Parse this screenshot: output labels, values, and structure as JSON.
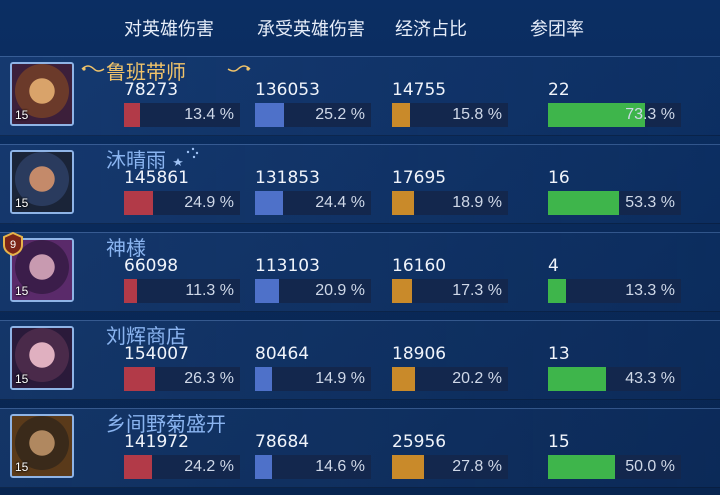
{
  "headers": {
    "damage_dealt": "对英雄伤害",
    "damage_taken": "承受英雄伤害",
    "economy_share": "经济占比",
    "participation": "参团率"
  },
  "colors": {
    "damage_dealt_bar": "#b23a48",
    "damage_taken_bar": "#4e71c9",
    "economy_bar": "#c98a2a",
    "participation_bar": "#3eb54b",
    "highlight_name": "#f0c36a",
    "player_name": "#8ab4f0"
  },
  "rank_badge": "9",
  "players": [
    {
      "name": "鲁班带师",
      "level": "15",
      "highlight": true,
      "damage_dealt": "78273",
      "damage_dealt_pct": "13.4 %",
      "damage_dealt_ratio": 0.134,
      "damage_taken": "136053",
      "damage_taken_pct": "25.2 %",
      "damage_taken_ratio": 0.252,
      "economy": "14755",
      "economy_pct": "15.8 %",
      "economy_ratio": 0.158,
      "participation": "22",
      "participation_pct": "73.3 %",
      "participation_ratio": 0.733
    },
    {
      "name": "沐晴雨",
      "level": "15",
      "highlight": false,
      "damage_dealt": "145861",
      "damage_dealt_pct": "24.9 %",
      "damage_dealt_ratio": 0.249,
      "damage_taken": "131853",
      "damage_taken_pct": "24.4 %",
      "damage_taken_ratio": 0.244,
      "economy": "17695",
      "economy_pct": "18.9 %",
      "economy_ratio": 0.189,
      "participation": "16",
      "participation_pct": "53.3 %",
      "participation_ratio": 0.533
    },
    {
      "name": "神様",
      "level": "15",
      "highlight": false,
      "damage_dealt": "66098",
      "damage_dealt_pct": "11.3 %",
      "damage_dealt_ratio": 0.113,
      "damage_taken": "113103",
      "damage_taken_pct": "20.9 %",
      "damage_taken_ratio": 0.209,
      "economy": "16160",
      "economy_pct": "17.3 %",
      "economy_ratio": 0.173,
      "participation": "4",
      "participation_pct": "13.3 %",
      "participation_ratio": 0.133
    },
    {
      "name": "刘辉商店",
      "level": "15",
      "highlight": false,
      "damage_dealt": "154007",
      "damage_dealt_pct": "26.3 %",
      "damage_dealt_ratio": 0.263,
      "damage_taken": "80464",
      "damage_taken_pct": "14.9 %",
      "damage_taken_ratio": 0.149,
      "economy": "18906",
      "economy_pct": "20.2 %",
      "economy_ratio": 0.202,
      "participation": "13",
      "participation_pct": "43.3 %",
      "participation_ratio": 0.433
    },
    {
      "name": "乡间野菊盛开",
      "level": "15",
      "highlight": false,
      "damage_dealt": "141972",
      "damage_dealt_pct": "24.2 %",
      "damage_dealt_ratio": 0.242,
      "damage_taken": "78684",
      "damage_taken_pct": "14.6 %",
      "damage_taken_ratio": 0.146,
      "economy": "25956",
      "economy_pct": "27.8 %",
      "economy_ratio": 0.278,
      "participation": "15",
      "participation_pct": "50.0 %",
      "participation_ratio": 0.5
    }
  ]
}
